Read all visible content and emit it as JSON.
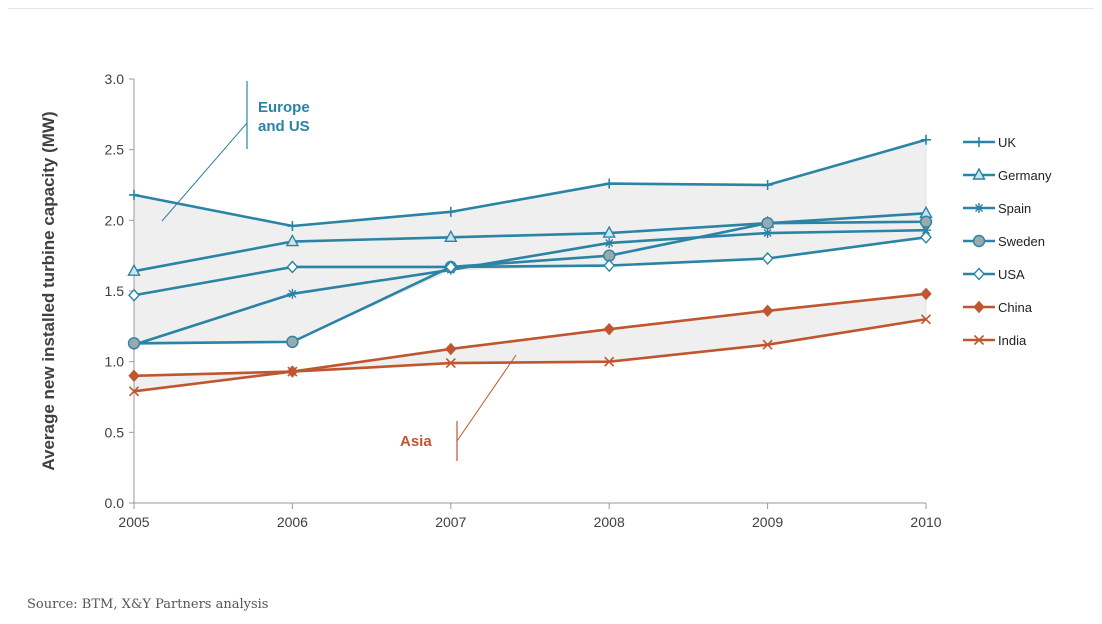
{
  "source": "Source: BTM, X&Y Partners analysis",
  "colors": {
    "europe_us": "#2B83A6",
    "asia": "#C0562F",
    "band": "#EFEFEF",
    "axis": "#999999"
  },
  "chart_data": {
    "type": "line",
    "title": "",
    "xlabel": "",
    "ylabel": "Average new installed turbine capacity (MW)",
    "x": [
      2005,
      2006,
      2007,
      2008,
      2009,
      2010
    ],
    "ylim": [
      0,
      3.0
    ],
    "yticks": [
      0.0,
      0.5,
      1.0,
      1.5,
      2.0,
      2.5,
      3.0
    ],
    "ytick_labels": [
      "0.0",
      "0.5",
      "1.0",
      "1.5",
      "2.0",
      "2.5",
      "3.0"
    ],
    "grid": false,
    "legend": "right",
    "series": [
      {
        "name": "UK",
        "group": "europe_us",
        "marker": "plus",
        "values": [
          2.18,
          1.96,
          2.06,
          2.26,
          2.25,
          2.57
        ]
      },
      {
        "name": "Germany",
        "group": "europe_us",
        "marker": "triangle",
        "values": [
          1.64,
          1.85,
          1.88,
          1.91,
          1.98,
          2.05
        ]
      },
      {
        "name": "Spain",
        "group": "europe_us",
        "marker": "star",
        "values": [
          1.12,
          1.48,
          1.65,
          1.84,
          1.91,
          1.93
        ]
      },
      {
        "name": "Sweden",
        "group": "europe_us",
        "marker": "circle",
        "values": [
          1.13,
          1.14,
          1.67,
          1.75,
          1.98,
          1.99
        ]
      },
      {
        "name": "USA",
        "group": "europe_us",
        "marker": "diamond-open",
        "values": [
          1.47,
          1.67,
          1.67,
          1.68,
          1.73,
          1.88
        ]
      },
      {
        "name": "China",
        "group": "asia",
        "marker": "diamond",
        "values": [
          0.9,
          0.93,
          1.09,
          1.23,
          1.36,
          1.48
        ]
      },
      {
        "name": "India",
        "group": "asia",
        "marker": "x",
        "values": [
          0.79,
          0.93,
          0.99,
          1.0,
          1.12,
          1.3
        ]
      }
    ],
    "annotations": [
      {
        "text_lines": [
          "Europe",
          "and US"
        ],
        "group": "europe_us"
      },
      {
        "text_lines": [
          "Asia"
        ],
        "group": "asia"
      }
    ]
  }
}
